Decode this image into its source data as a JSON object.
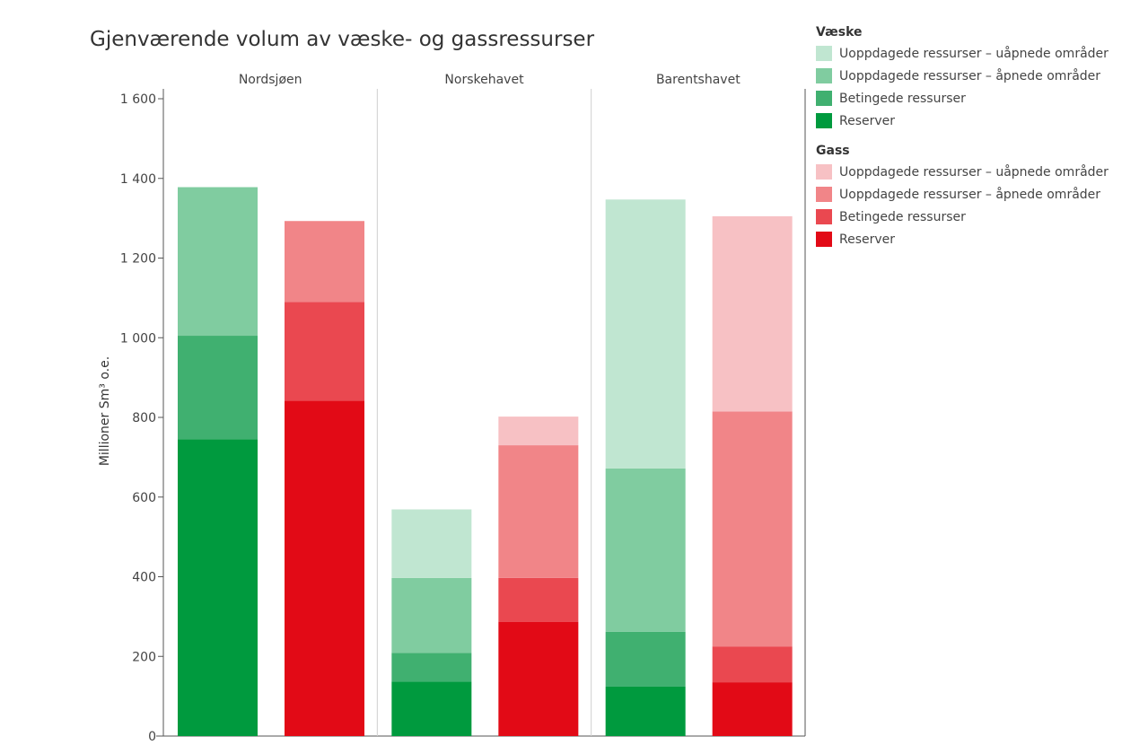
{
  "colors": {
    "liquid": [
      "#009a3e",
      "#40b070",
      "#80cca0",
      "#c0e6d1"
    ],
    "gas": [
      "#e20a16",
      "#ea4850",
      "#f18588",
      "#f7c1c4"
    ]
  },
  "chart_data": {
    "type": "bar",
    "stacked": true,
    "title": "Gjenværende volum av væske- og gassressurser",
    "ylabel": "Millioner Sm³ o.e.",
    "ylim": [
      0,
      1600
    ],
    "yticks": [
      "0",
      "200",
      "400",
      "600",
      "800",
      "1 000",
      "1 200",
      "1 400",
      "1 600"
    ],
    "yticks_values": [
      0,
      200,
      400,
      600,
      800,
      1000,
      1200,
      1400,
      1600
    ],
    "grid": false,
    "legend_position": "top-right",
    "panels": [
      "Nordsjøen",
      "Norskehavet",
      "Barentshavet"
    ],
    "groups": [
      {
        "name": "Væske",
        "series": [
          {
            "name": "Reserver",
            "values": [
              745,
              137,
              124
            ]
          },
          {
            "name": "Betingede ressurser",
            "values": [
              260,
              72,
              138
            ]
          },
          {
            "name": "Uoppdagede ressurser – åpnede områder",
            "values": [
              373,
              188,
              410
            ]
          },
          {
            "name": "Uoppdagede ressurser – uåpnede områder",
            "values": [
              0,
              172,
              675
            ]
          }
        ]
      },
      {
        "name": "Gass",
        "series": [
          {
            "name": "Reserver",
            "values": [
              842,
              287,
              135
            ]
          },
          {
            "name": "Betingede ressurser",
            "values": [
              248,
              110,
              90
            ]
          },
          {
            "name": "Uoppdagede ressurser – åpnede områder",
            "values": [
              203,
              333,
              590
            ]
          },
          {
            "name": "Uoppdagede ressurser – uåpnede områder",
            "values": [
              0,
              72,
              490
            ]
          }
        ]
      }
    ]
  },
  "legend": {
    "liquid_title": "Væske",
    "liquid_items": [
      "Uoppdagede ressurser – uåpnede områder",
      "Uoppdagede ressurser – åpnede områder",
      "Betingede ressurser",
      "Reserver"
    ],
    "gas_title": "Gass",
    "gas_items": [
      "Uoppdagede ressurser – uåpnede områder",
      "Uoppdagede ressurser – åpnede områder",
      "Betingede ressurser",
      "Reserver"
    ]
  }
}
